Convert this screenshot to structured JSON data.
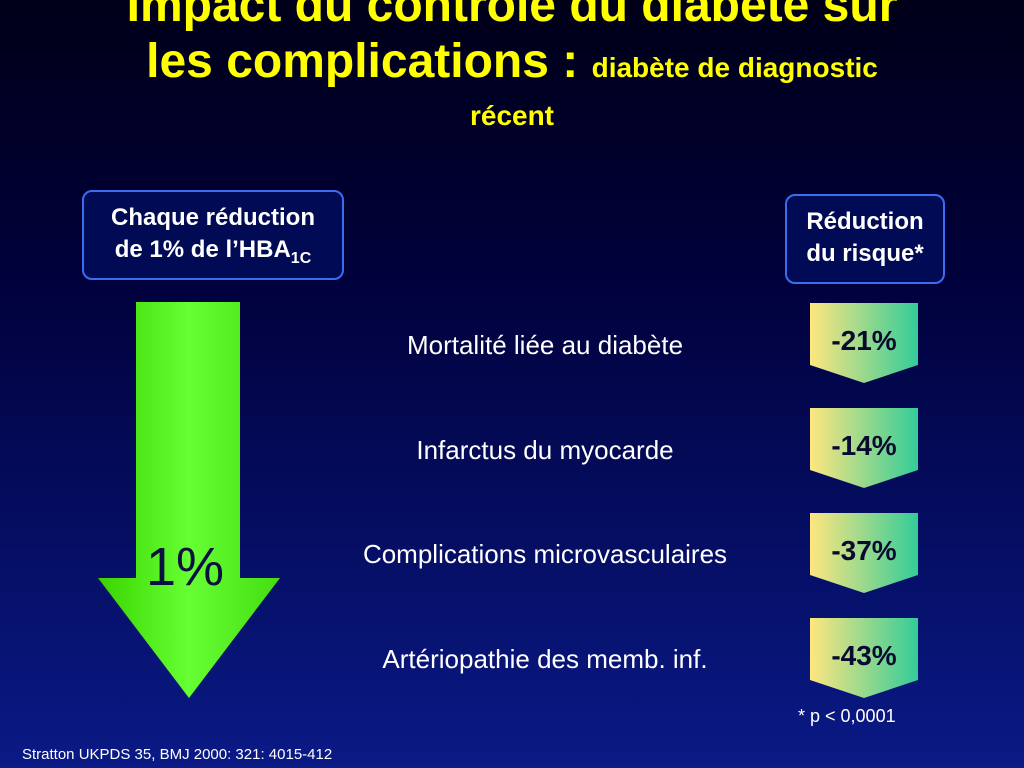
{
  "title": {
    "main_line1": "Impact du contrôle du diabète sur",
    "main_line2": "les complications :",
    "sub_inline": "diabète de diagnostic",
    "sub_line3": "récent"
  },
  "left_box": {
    "line1": "Chaque réduction",
    "line2": "de 1% de l’HBA",
    "subscript": "1C"
  },
  "right_box": {
    "line1": "Réduction",
    "line2": "du risque*"
  },
  "arrow": {
    "label": "1%",
    "color": "#55ff33"
  },
  "rows": [
    {
      "label": "Mortalité liée au diabète",
      "value": "-21%"
    },
    {
      "label": "Infarctus du myocarde",
      "value": "-14%"
    },
    {
      "label": "Complications microvasculaires",
      "value": "-37%"
    },
    {
      "label": "Artériopathie des memb. inf.",
      "value": "-43%"
    }
  ],
  "footnote": "* p < 0,0001",
  "source": "Stratton UKPDS 35, BMJ 2000: 321: 4015-412",
  "colors": {
    "title": "#ffff00",
    "badge_top": "#ffe680",
    "badge_bottom": "#33cc99"
  }
}
